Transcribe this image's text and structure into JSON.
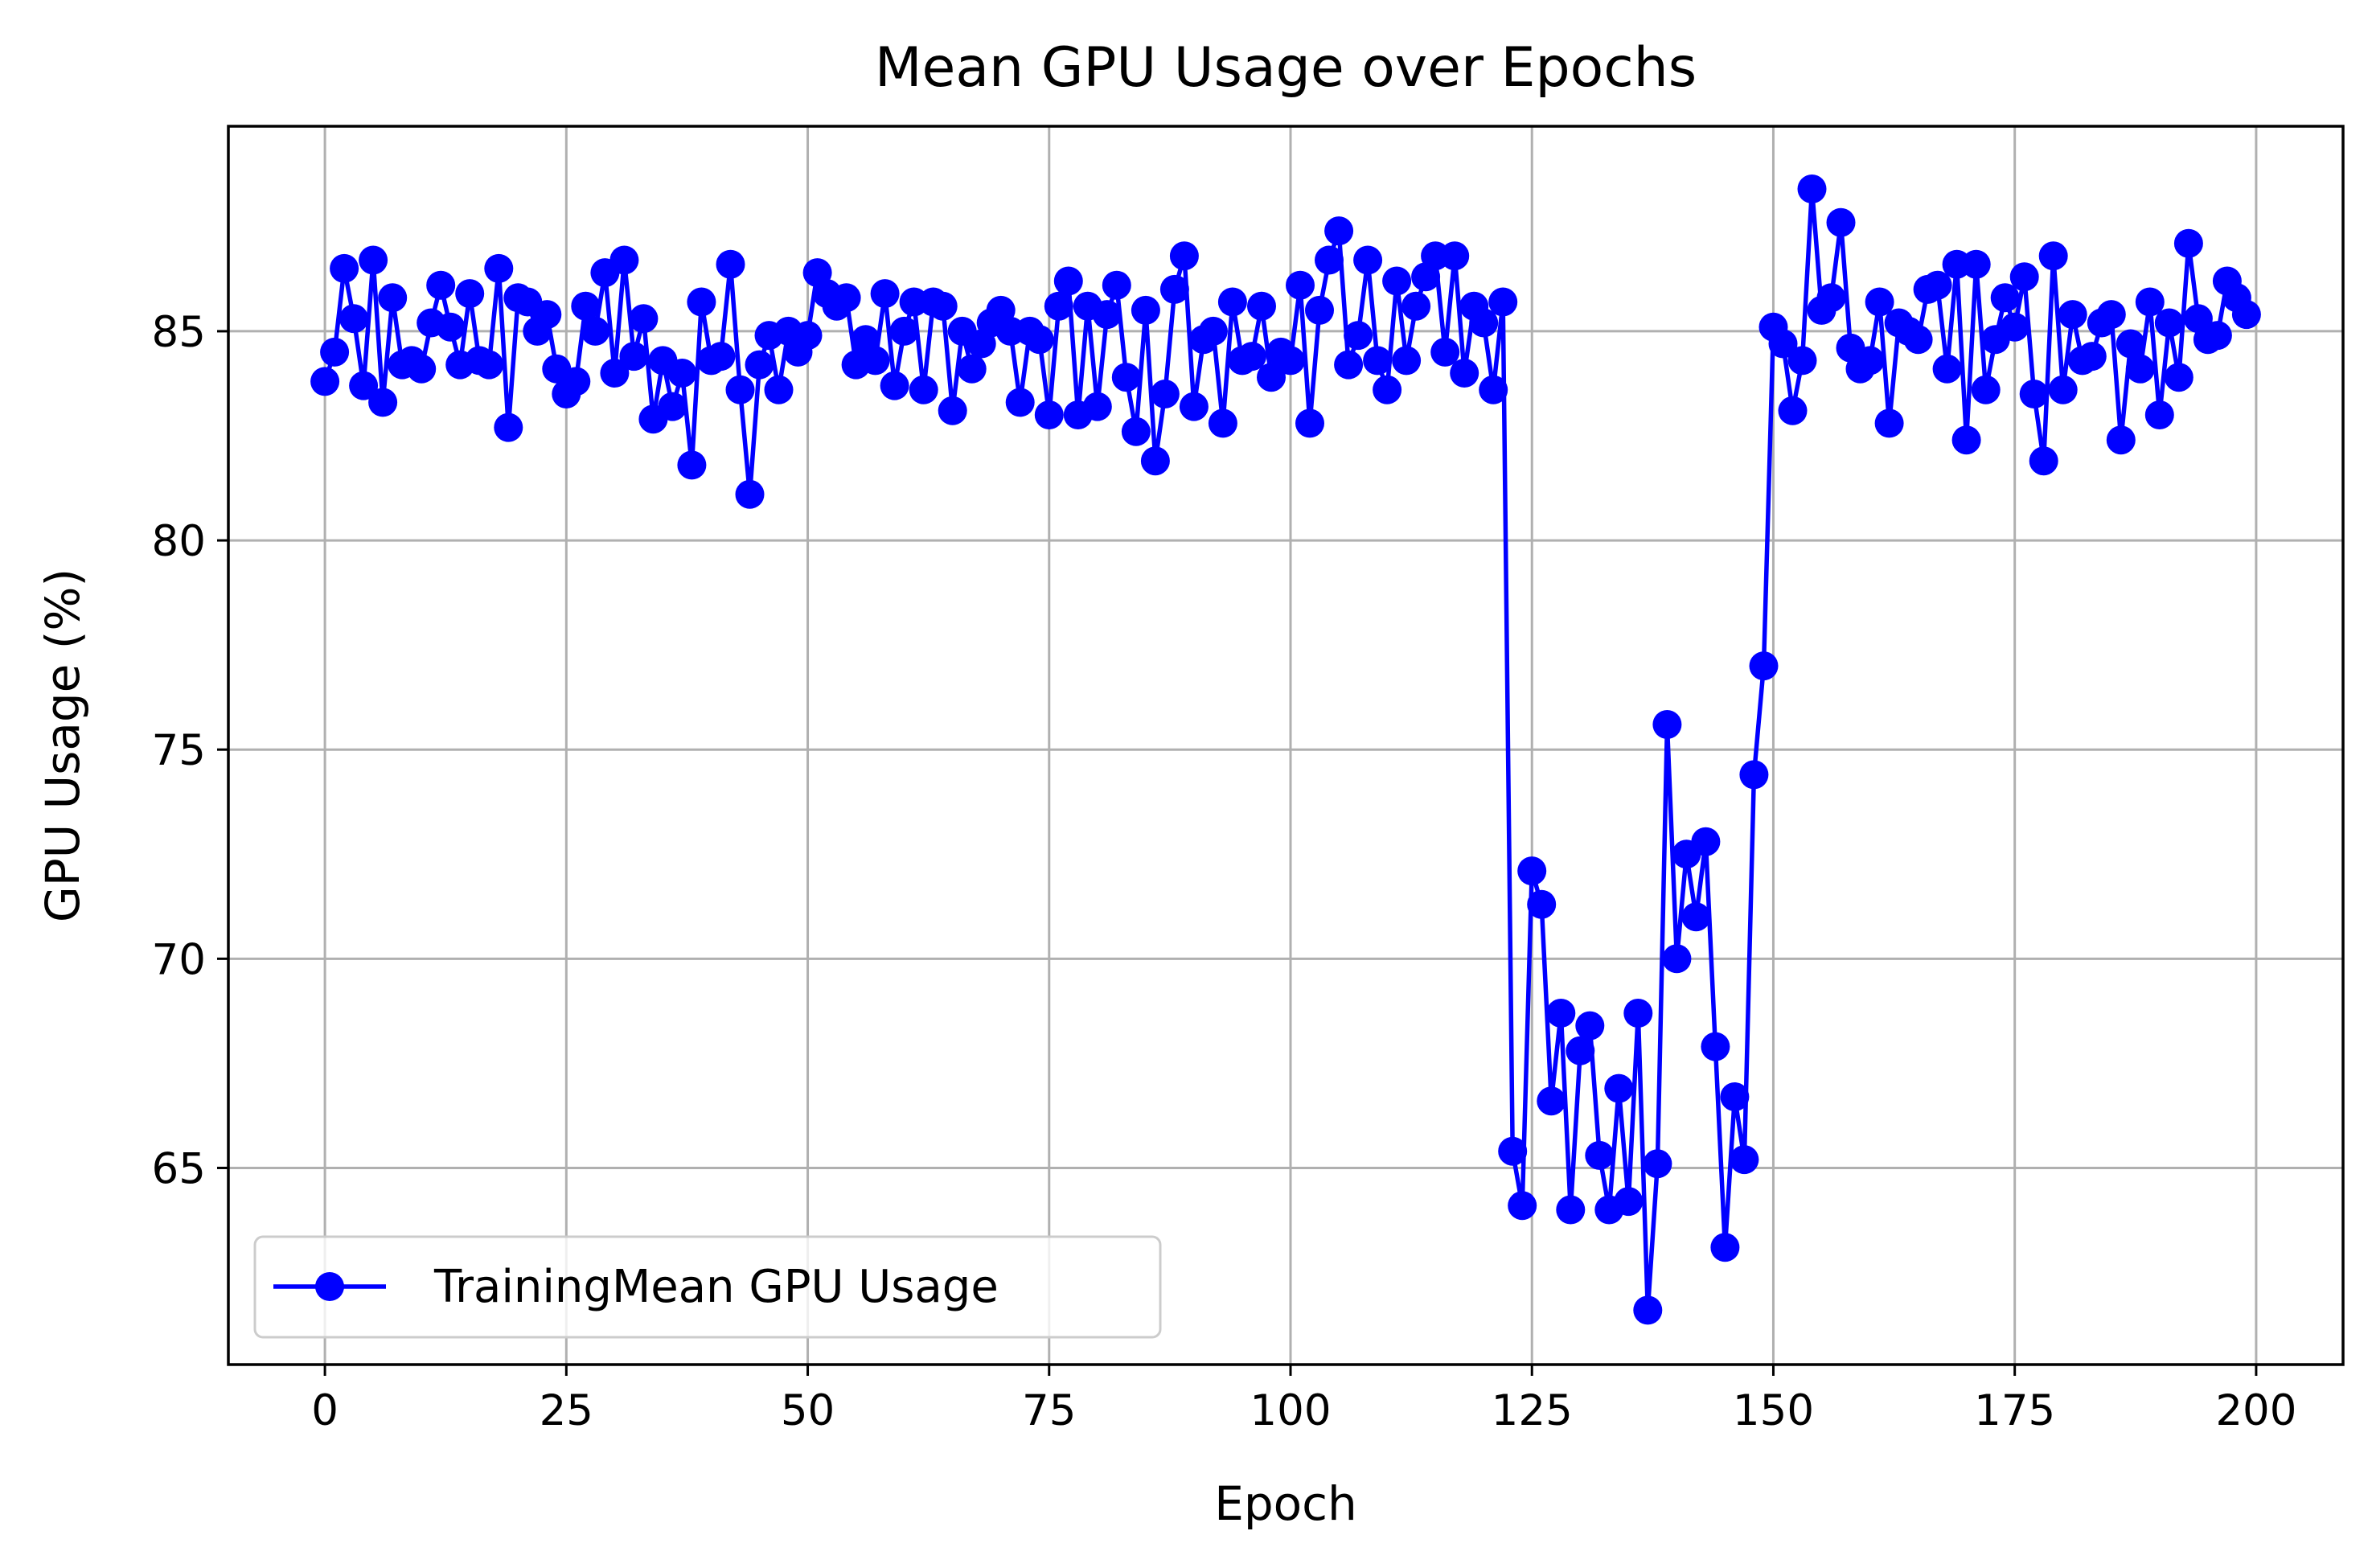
{
  "chart_data": {
    "type": "line",
    "title": "Mean GPU Usage over Epochs",
    "xlabel": "Epoch",
    "ylabel": "GPU Usage (%)",
    "xlim": [
      -10,
      209
    ],
    "ylim": [
      60.3,
      89.9
    ],
    "xticks": [
      0,
      25,
      50,
      75,
      100,
      125,
      150,
      175,
      200
    ],
    "yticks": [
      65,
      70,
      75,
      80,
      85
    ],
    "grid": true,
    "legend_position": "lower-left",
    "series": [
      {
        "name": "TrainingMean GPU Usage",
        "color": "#0000ff",
        "marker": "circle",
        "x": [
          0,
          1,
          2,
          3,
          4,
          5,
          6,
          7,
          8,
          9,
          10,
          11,
          12,
          13,
          14,
          15,
          16,
          17,
          18,
          19,
          20,
          21,
          22,
          23,
          24,
          25,
          26,
          27,
          28,
          29,
          30,
          31,
          32,
          33,
          34,
          35,
          36,
          37,
          38,
          39,
          40,
          41,
          42,
          43,
          44,
          45,
          46,
          47,
          48,
          49,
          50,
          51,
          52,
          53,
          54,
          55,
          56,
          57,
          58,
          59,
          60,
          61,
          62,
          63,
          64,
          65,
          66,
          67,
          68,
          69,
          70,
          71,
          72,
          73,
          74,
          75,
          76,
          77,
          78,
          79,
          80,
          81,
          82,
          83,
          84,
          85,
          86,
          87,
          88,
          89,
          90,
          91,
          92,
          93,
          94,
          95,
          96,
          97,
          98,
          99,
          100,
          101,
          102,
          103,
          104,
          105,
          106,
          107,
          108,
          109,
          110,
          111,
          112,
          113,
          114,
          115,
          116,
          117,
          118,
          119,
          120,
          121,
          122,
          123,
          124,
          125,
          126,
          127,
          128,
          129,
          130,
          131,
          132,
          133,
          134,
          135,
          136,
          137,
          138,
          139,
          140,
          141,
          142,
          143,
          144,
          145,
          146,
          147,
          148,
          149,
          150,
          151,
          152,
          153,
          154,
          155,
          156,
          157,
          158,
          159,
          160,
          161,
          162,
          163,
          164,
          165,
          166,
          167,
          168,
          169,
          170,
          171,
          172,
          173,
          174,
          175,
          176,
          177,
          178,
          179,
          180,
          181,
          182,
          183,
          184,
          185,
          186,
          187,
          188,
          189,
          190,
          191,
          192,
          193,
          194,
          195,
          196,
          197,
          198,
          199
        ],
        "values": [
          83.8,
          84.5,
          86.5,
          85.3,
          83.7,
          86.7,
          83.3,
          85.8,
          84.2,
          84.3,
          84.1,
          85.2,
          86.1,
          85.1,
          84.2,
          85.9,
          84.3,
          84.2,
          86.5,
          82.7,
          85.8,
          85.7,
          85.0,
          85.4,
          84.1,
          83.5,
          83.8,
          85.6,
          85.0,
          86.4,
          84.0,
          86.7,
          84.4,
          85.3,
          82.9,
          84.3,
          83.2,
          84.0,
          81.8,
          85.7,
          84.3,
          84.4,
          86.6,
          83.6,
          81.1,
          84.2,
          84.9,
          83.6,
          85.0,
          84.5,
          84.9,
          86.4,
          85.9,
          85.6,
          85.8,
          84.2,
          84.8,
          84.3,
          85.9,
          83.7,
          85.0,
          85.7,
          83.6,
          85.7,
          85.6,
          83.1,
          85.0,
          84.1,
          84.7,
          85.2,
          85.5,
          85.0,
          83.3,
          85.0,
          84.8,
          83.0,
          85.6,
          86.2,
          83.0,
          85.6,
          83.2,
          85.4,
          86.1,
          83.9,
          82.6,
          85.5,
          81.9,
          83.5,
          86.0,
          86.8,
          83.2,
          84.8,
          85.0,
          82.8,
          85.7,
          84.3,
          84.4,
          85.6,
          83.9,
          84.5,
          84.3,
          86.1,
          82.8,
          85.5,
          86.7,
          87.4,
          84.2,
          84.9,
          86.7,
          84.3,
          83.6,
          86.2,
          84.3,
          85.6,
          86.3,
          86.8,
          84.5,
          86.8,
          84.0,
          85.6,
          85.2,
          83.6,
          85.7,
          65.4,
          64.1,
          72.1,
          71.3,
          66.6,
          68.7,
          64.0,
          67.8,
          68.4,
          65.3,
          64.0,
          66.9,
          64.2,
          68.7,
          61.6,
          65.1,
          75.6,
          70.0,
          72.5,
          71.0,
          72.8,
          67.9,
          63.1,
          66.7,
          65.2,
          74.4,
          77.0,
          85.1,
          84.7,
          83.1,
          84.3,
          88.4,
          85.5,
          85.8,
          87.6,
          84.6,
          84.1,
          84.3,
          85.7,
          82.8,
          85.2,
          85.0,
          84.8,
          86.0,
          86.1,
          84.1,
          86.6,
          82.4,
          86.6,
          83.6,
          84.8,
          85.8,
          85.1,
          86.3,
          83.5,
          81.9,
          86.8,
          83.6,
          85.4,
          84.3,
          84.4,
          85.2,
          85.4,
          82.4,
          84.7,
          84.1,
          85.7,
          83.0,
          85.2,
          83.9,
          87.1,
          85.3,
          84.8,
          84.9,
          86.2,
          85.8,
          85.4
        ]
      }
    ]
  }
}
